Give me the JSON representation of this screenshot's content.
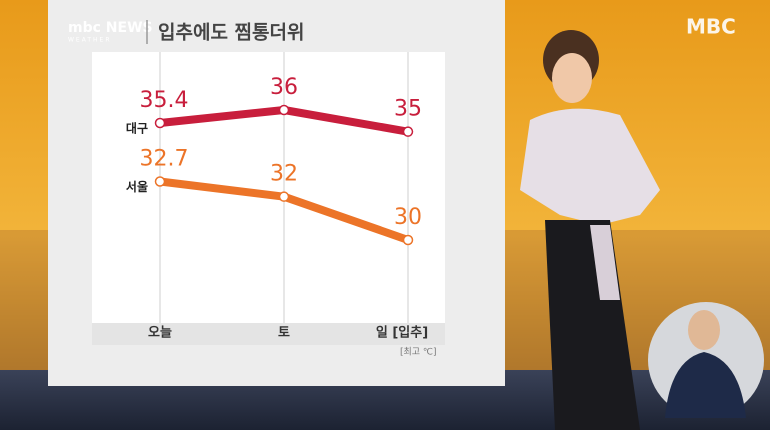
{
  "header": {
    "logo": "mbc NEWS",
    "logo_sub": "WEATHER",
    "title": "입추에도 찜통더위",
    "channel": "MBC"
  },
  "chart_data": {
    "type": "line",
    "categories": [
      "오늘",
      "토",
      "일 [입추]"
    ],
    "series": [
      {
        "name": "대구",
        "color": "#c81e3c",
        "values": [
          35.4,
          36,
          35
        ]
      },
      {
        "name": "서울",
        "color": "#ec7428",
        "values": [
          32.7,
          32,
          30
        ]
      }
    ],
    "unit_note": "[최고 ℃]"
  }
}
